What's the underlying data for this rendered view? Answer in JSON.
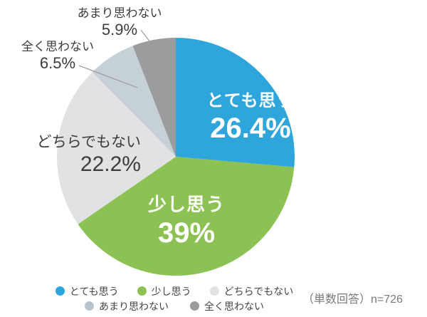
{
  "chart_data": {
    "type": "pie",
    "direction": "clockwise",
    "start_angle_deg": 0,
    "series": [
      {
        "label": "とても思う",
        "value": 26.4,
        "display": "26.4%",
        "color": "#2FA6DB"
      },
      {
        "label": "少し思う",
        "value": 39,
        "display": "39%",
        "color": "#8CC153"
      },
      {
        "label": "どちらでもない",
        "value": 22.2,
        "display": "22.2%",
        "color": "#E2E2E4"
      },
      {
        "label": "全く思わない",
        "value": 6.5,
        "display": "6.5%",
        "color": "#C5D0D7"
      },
      {
        "label": "あまり思わない",
        "value": 5.9,
        "display": "5.9%",
        "color": "#9C9C9E"
      }
    ],
    "legend": [
      {
        "label": "とても思う",
        "color": "#2FA6DB"
      },
      {
        "label": "少し思う",
        "color": "#8CC153"
      },
      {
        "label": "どちらでもない",
        "color": "#E2E2E4"
      },
      {
        "label": "あまり思わない",
        "color": "#B6C4CD"
      },
      {
        "label": "全く思わない",
        "color": "#9B9B9B"
      }
    ],
    "annotation": "（単数回答）n=726"
  }
}
